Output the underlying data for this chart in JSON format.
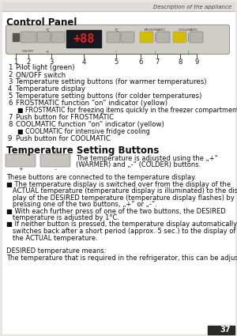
{
  "page_number": "37",
  "header_text": "Description of the appliance",
  "section1_title": "Control Panel",
  "section2_title": "Temperature Setting Buttons",
  "numbered_items": [
    {
      "num": "1",
      "text": "Pilot light (green)"
    },
    {
      "num": "2",
      "text": "ON/OFF switch"
    },
    {
      "num": "3",
      "text": "Temperature setting buttons (for warmer temperatures)"
    },
    {
      "num": "4",
      "text": "Temperature display"
    },
    {
      "num": "5",
      "text": "Temperature setting buttons (for colder temperatures)"
    },
    {
      "num": "6",
      "text": "FROSTMATIC function “on” indicator (yellow)",
      "sub": "■ FROSTMATIC for freezing items quickly in the freezer compartment"
    },
    {
      "num": "7",
      "text": "Push button for FROSTMATIC"
    },
    {
      "num": "8",
      "text": "COOLMATIC function “on” indicator (yellow)",
      "sub": "■ COOLMATIC for intensive fridge cooling"
    },
    {
      "num": "9",
      "text": "Push button for COOLMATIC"
    }
  ],
  "body_lines": [
    "These buttons are connected to the temperature display.",
    "■ The temperature display is switched over from the display of the",
    "   ACTUAL temperature (temperature display is illuminated) to the dis-",
    "   play of the DESIRED temperature (temperature display flashes) by",
    "   pressing one of the two buttons, „+“ or „-“.",
    "■ With each further press of one of the two buttons, the DESIRED",
    "   temperature is adjusted by 1°C.",
    "■ If neither button is pressed, the temperature display automatically",
    "   switches back after a short period (approx. 5 sec.) to the display of",
    "   the ACTUAL temperature.",
    "",
    "DESIRED temperature means:",
    "The temperature that is required in the refrigerator, this can be adjust-"
  ],
  "temp_intro_line1": "The temperature is adjusted using the „+“",
  "temp_intro_line2": "(WARMER) and „-“ (COLDER) buttons."
}
